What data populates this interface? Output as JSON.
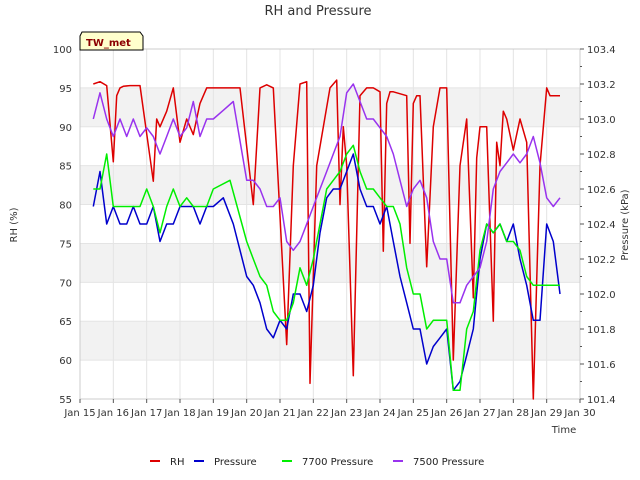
{
  "chart_data": {
    "type": "line",
    "title": "RH and Pressure",
    "badge": "TW_met",
    "xlabel": "Time",
    "ylabel_left": "RH (%)",
    "ylabel_right": "Pressure (kPa)",
    "xlim": [
      15,
      30
    ],
    "ylim_left": [
      55,
      100
    ],
    "ylim_right": [
      101.4,
      103.4
    ],
    "x_ticks": [
      {
        "value": 15,
        "label": "Jan 15"
      },
      {
        "value": 16,
        "label": "Jan 16"
      },
      {
        "value": 17,
        "label": "Jan 17"
      },
      {
        "value": 18,
        "label": "Jan 18"
      },
      {
        "value": 19,
        "label": "Jan 19"
      },
      {
        "value": 20,
        "label": "Jan 20"
      },
      {
        "value": 21,
        "label": "Jan 21"
      },
      {
        "value": 22,
        "label": "Jan 22"
      },
      {
        "value": 23,
        "label": "Jan 23"
      },
      {
        "value": 24,
        "label": "Jan 24"
      },
      {
        "value": 25,
        "label": "Jan 25"
      },
      {
        "value": 26,
        "label": "Jan 26"
      },
      {
        "value": 27,
        "label": "Jan 27"
      },
      {
        "value": 28,
        "label": "Jan 28"
      },
      {
        "value": 29,
        "label": "Jan 29"
      },
      {
        "value": 30,
        "label": "Jan 30"
      }
    ],
    "y_ticks_left": [
      "55",
      "60",
      "65",
      "70",
      "75",
      "80",
      "85",
      "90",
      "95",
      "100"
    ],
    "y_ticks_right": [
      "101.4",
      "101.6",
      "101.8",
      "102.0",
      "102.2",
      "102.4",
      "102.6",
      "102.8",
      "103.0",
      "103.2",
      "103.4"
    ],
    "grid": true,
    "legend_position": "bottom",
    "series": [
      {
        "name": "RH",
        "axis": "left",
        "color": "#dd0000",
        "x": [
          15.4,
          15.6,
          15.8,
          16.0,
          16.1,
          16.2,
          16.3,
          16.5,
          16.8,
          17.2,
          17.3,
          17.4,
          17.6,
          17.8,
          18.0,
          18.2,
          18.4,
          18.6,
          18.8,
          19.0,
          19.3,
          19.8,
          20.2,
          20.4,
          20.6,
          20.8,
          21.2,
          21.4,
          21.6,
          21.8,
          21.9,
          22.1,
          22.5,
          22.7,
          22.8,
          22.9,
          23.0,
          23.2,
          23.4,
          23.6,
          23.8,
          24.0,
          24.1,
          24.2,
          24.3,
          24.4,
          24.8,
          24.9,
          25.0,
          25.1,
          25.2,
          25.4,
          25.6,
          25.8,
          26.0,
          26.2,
          26.4,
          26.6,
          26.8,
          26.9,
          27.0,
          27.2,
          27.4,
          27.5,
          27.6,
          27.7,
          27.8,
          28.0,
          28.2,
          28.4,
          28.6,
          28.8,
          29.0,
          29.1,
          29.3,
          29.4
        ],
        "y": [
          95.5,
          95.8,
          95.3,
          85.5,
          94,
          95,
          95.2,
          95.3,
          95.3,
          83,
          91,
          90,
          92,
          95,
          88,
          91,
          89,
          93,
          95,
          95,
          95,
          95,
          80,
          95,
          95.4,
          95,
          62,
          85,
          95.5,
          95.8,
          57,
          85,
          95,
          96,
          80,
          90,
          85,
          58,
          94,
          95,
          95,
          94.5,
          74,
          93,
          94.5,
          94.5,
          94,
          75,
          93,
          94,
          94,
          72,
          90,
          95,
          95,
          60,
          85,
          91,
          68,
          86,
          90,
          90,
          65,
          88,
          85,
          92,
          91,
          87,
          91,
          88,
          55,
          85,
          95,
          94,
          94,
          94
        ]
      },
      {
        "name": "Pressure",
        "axis": "right",
        "color": "#0000cc",
        "x": [
          15.4,
          15.6,
          15.8,
          16.0,
          16.2,
          16.4,
          16.6,
          16.8,
          17.0,
          17.2,
          17.4,
          17.6,
          17.8,
          18.0,
          18.2,
          18.4,
          18.6,
          18.8,
          19.0,
          19.3,
          19.6,
          20.0,
          20.2,
          20.4,
          20.6,
          20.8,
          21.0,
          21.2,
          21.4,
          21.6,
          21.8,
          22.0,
          22.2,
          22.4,
          22.6,
          22.8,
          23.0,
          23.2,
          23.4,
          23.6,
          23.8,
          24.0,
          24.2,
          24.4,
          24.6,
          24.8,
          25.0,
          25.2,
          25.4,
          25.6,
          25.8,
          26.0,
          26.2,
          26.4,
          26.6,
          26.8,
          27.0,
          27.2,
          27.4,
          27.6,
          27.8,
          28.0,
          28.2,
          28.4,
          28.6,
          28.8,
          29.0,
          29.2,
          29.4
        ],
        "y": [
          102.5,
          102.7,
          102.4,
          102.5,
          102.4,
          102.4,
          102.5,
          102.4,
          102.4,
          102.5,
          102.3,
          102.4,
          102.4,
          102.5,
          102.5,
          102.5,
          102.4,
          102.5,
          102.5,
          102.55,
          102.4,
          102.1,
          102.05,
          101.95,
          101.8,
          101.75,
          101.85,
          101.8,
          102.0,
          102.0,
          101.9,
          102.05,
          102.35,
          102.55,
          102.6,
          102.6,
          102.7,
          102.8,
          102.6,
          102.5,
          102.5,
          102.4,
          102.5,
          102.3,
          102.1,
          101.95,
          101.8,
          101.8,
          101.6,
          101.7,
          101.75,
          101.8,
          101.45,
          101.5,
          101.65,
          101.8,
          102.2,
          102.4,
          102.35,
          102.4,
          102.3,
          102.4,
          102.2,
          102.05,
          101.85,
          101.85,
          102.4,
          102.3,
          102.0
        ]
      },
      {
        "name": "7700 Pressure",
        "axis": "right",
        "color": "#00ee00",
        "x": [
          15.4,
          15.6,
          15.8,
          16.0,
          16.2,
          16.4,
          16.6,
          16.8,
          17.0,
          17.2,
          17.4,
          17.6,
          17.8,
          18.0,
          18.2,
          18.4,
          18.6,
          18.8,
          19.0,
          19.5,
          20.0,
          20.2,
          20.4,
          20.6,
          20.8,
          21.0,
          21.2,
          21.4,
          21.6,
          21.8,
          22.0,
          22.2,
          22.4,
          22.6,
          22.8,
          23.0,
          23.2,
          23.4,
          23.6,
          23.8,
          24.0,
          24.2,
          24.4,
          24.6,
          24.8,
          25.0,
          25.2,
          25.4,
          25.6,
          25.8,
          26.0,
          26.2,
          26.4,
          26.6,
          26.8,
          27.0,
          27.2,
          27.4,
          27.6,
          27.8,
          28.0,
          28.2,
          28.4,
          28.6,
          28.8,
          29.0,
          29.2,
          29.4
        ],
        "y": [
          102.6,
          102.6,
          102.8,
          102.5,
          102.5,
          102.5,
          102.5,
          102.5,
          102.6,
          102.5,
          102.35,
          102.5,
          102.6,
          102.5,
          102.55,
          102.5,
          102.5,
          102.5,
          102.6,
          102.65,
          102.3,
          102.2,
          102.1,
          102.05,
          101.9,
          101.85,
          101.85,
          101.95,
          102.15,
          102.05,
          102.2,
          102.4,
          102.6,
          102.65,
          102.7,
          102.8,
          102.85,
          102.7,
          102.6,
          102.6,
          102.55,
          102.5,
          102.5,
          102.4,
          102.15,
          102.0,
          102.0,
          101.8,
          101.85,
          101.85,
          101.85,
          101.45,
          101.45,
          101.8,
          101.9,
          102.25,
          102.4,
          102.35,
          102.4,
          102.3,
          102.3,
          102.25,
          102.1,
          102.05,
          102.05,
          102.05,
          102.05,
          102.05
        ]
      },
      {
        "name": "7500 Pressure",
        "axis": "right",
        "color": "#9933ee",
        "x": [
          15.4,
          15.6,
          15.8,
          16.0,
          16.2,
          16.4,
          16.6,
          16.8,
          17.0,
          17.2,
          17.4,
          17.6,
          17.8,
          18.0,
          18.2,
          18.4,
          18.6,
          18.8,
          19.0,
          19.3,
          19.6,
          20.0,
          20.2,
          20.4,
          20.6,
          20.8,
          21.0,
          21.2,
          21.4,
          21.6,
          21.8,
          22.0,
          22.2,
          22.4,
          22.6,
          22.8,
          23.0,
          23.2,
          23.4,
          23.6,
          23.8,
          24.0,
          24.2,
          24.4,
          24.6,
          24.8,
          25.0,
          25.2,
          25.4,
          25.6,
          25.8,
          26.0,
          26.2,
          26.4,
          26.6,
          26.8,
          27.0,
          27.2,
          27.4,
          27.6,
          27.8,
          28.0,
          28.2,
          28.4,
          28.6,
          28.8,
          29.0,
          29.2,
          29.4
        ],
        "y": [
          103.0,
          103.15,
          103.0,
          102.9,
          103.0,
          102.9,
          103.0,
          102.9,
          102.95,
          102.9,
          102.8,
          102.9,
          103.0,
          102.9,
          102.95,
          103.1,
          102.9,
          103.0,
          103.0,
          103.05,
          103.1,
          102.65,
          102.65,
          102.6,
          102.5,
          102.5,
          102.55,
          102.3,
          102.25,
          102.3,
          102.4,
          102.5,
          102.6,
          102.7,
          102.8,
          102.9,
          103.15,
          103.2,
          103.1,
          103.0,
          103.0,
          102.95,
          102.9,
          102.8,
          102.65,
          102.5,
          102.6,
          102.65,
          102.55,
          102.3,
          102.2,
          102.2,
          101.95,
          101.95,
          102.05,
          102.1,
          102.15,
          102.3,
          102.6,
          102.7,
          102.75,
          102.8,
          102.75,
          102.8,
          102.9,
          102.75,
          102.55,
          102.5,
          102.55
        ]
      }
    ]
  }
}
